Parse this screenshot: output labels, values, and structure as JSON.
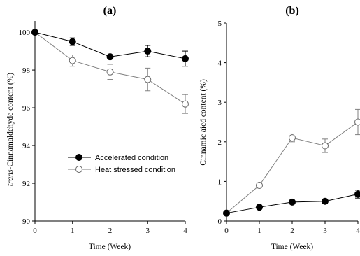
{
  "chart_data": [
    {
      "type": "line",
      "title": "(a)",
      "xlabel": "Time (Week)",
      "ylabel_prefix": "trans",
      "ylabel_rest": "-Cinnamaldehyde content (%)",
      "xlim": [
        0,
        4
      ],
      "ylim": [
        90,
        100.5
      ],
      "xticks": [
        "0",
        "1",
        "2",
        "3",
        "4"
      ],
      "yticks": [
        "90",
        "92",
        "94",
        "96",
        "98",
        "100"
      ],
      "x": [
        0,
        1,
        2,
        3,
        4
      ],
      "legend_position": "lower-left",
      "grid": false,
      "series": [
        {
          "name": "Accelerated condition",
          "marker": "filled-circle",
          "color": "#000000",
          "values": [
            100,
            99.5,
            98.7,
            99.0,
            98.6
          ],
          "errors": [
            0,
            0.2,
            0.1,
            0.3,
            0.4
          ]
        },
        {
          "name": "Heat stressed condition",
          "marker": "open-circle",
          "color": "#808080",
          "values": [
            100,
            98.5,
            97.9,
            97.5,
            96.2
          ],
          "errors": [
            0,
            0.3,
            0.4,
            0.6,
            0.5
          ]
        }
      ]
    },
    {
      "type": "line",
      "title": "(b)",
      "xlabel": "Time (Week)",
      "ylabel": "Cinnamic aicd content (%)",
      "xlim": [
        0,
        4
      ],
      "ylim": [
        0,
        5
      ],
      "xticks": [
        "0",
        "1",
        "2",
        "3",
        "4"
      ],
      "yticks": [
        "0",
        "1",
        "2",
        "3",
        "4",
        "5"
      ],
      "x": [
        0,
        1,
        2,
        3,
        4
      ],
      "grid": false,
      "series": [
        {
          "marker": "filled-circle",
          "color": "#000000",
          "values": [
            0.2,
            0.35,
            0.48,
            0.5,
            0.68
          ],
          "errors": [
            0,
            0.03,
            0.04,
            0.05,
            0.1
          ]
        },
        {
          "marker": "open-circle",
          "color": "#808080",
          "values": [
            0.2,
            0.9,
            2.1,
            1.9,
            2.5
          ],
          "errors": [
            0,
            0.04,
            0.1,
            0.17,
            0.32
          ]
        }
      ]
    }
  ]
}
